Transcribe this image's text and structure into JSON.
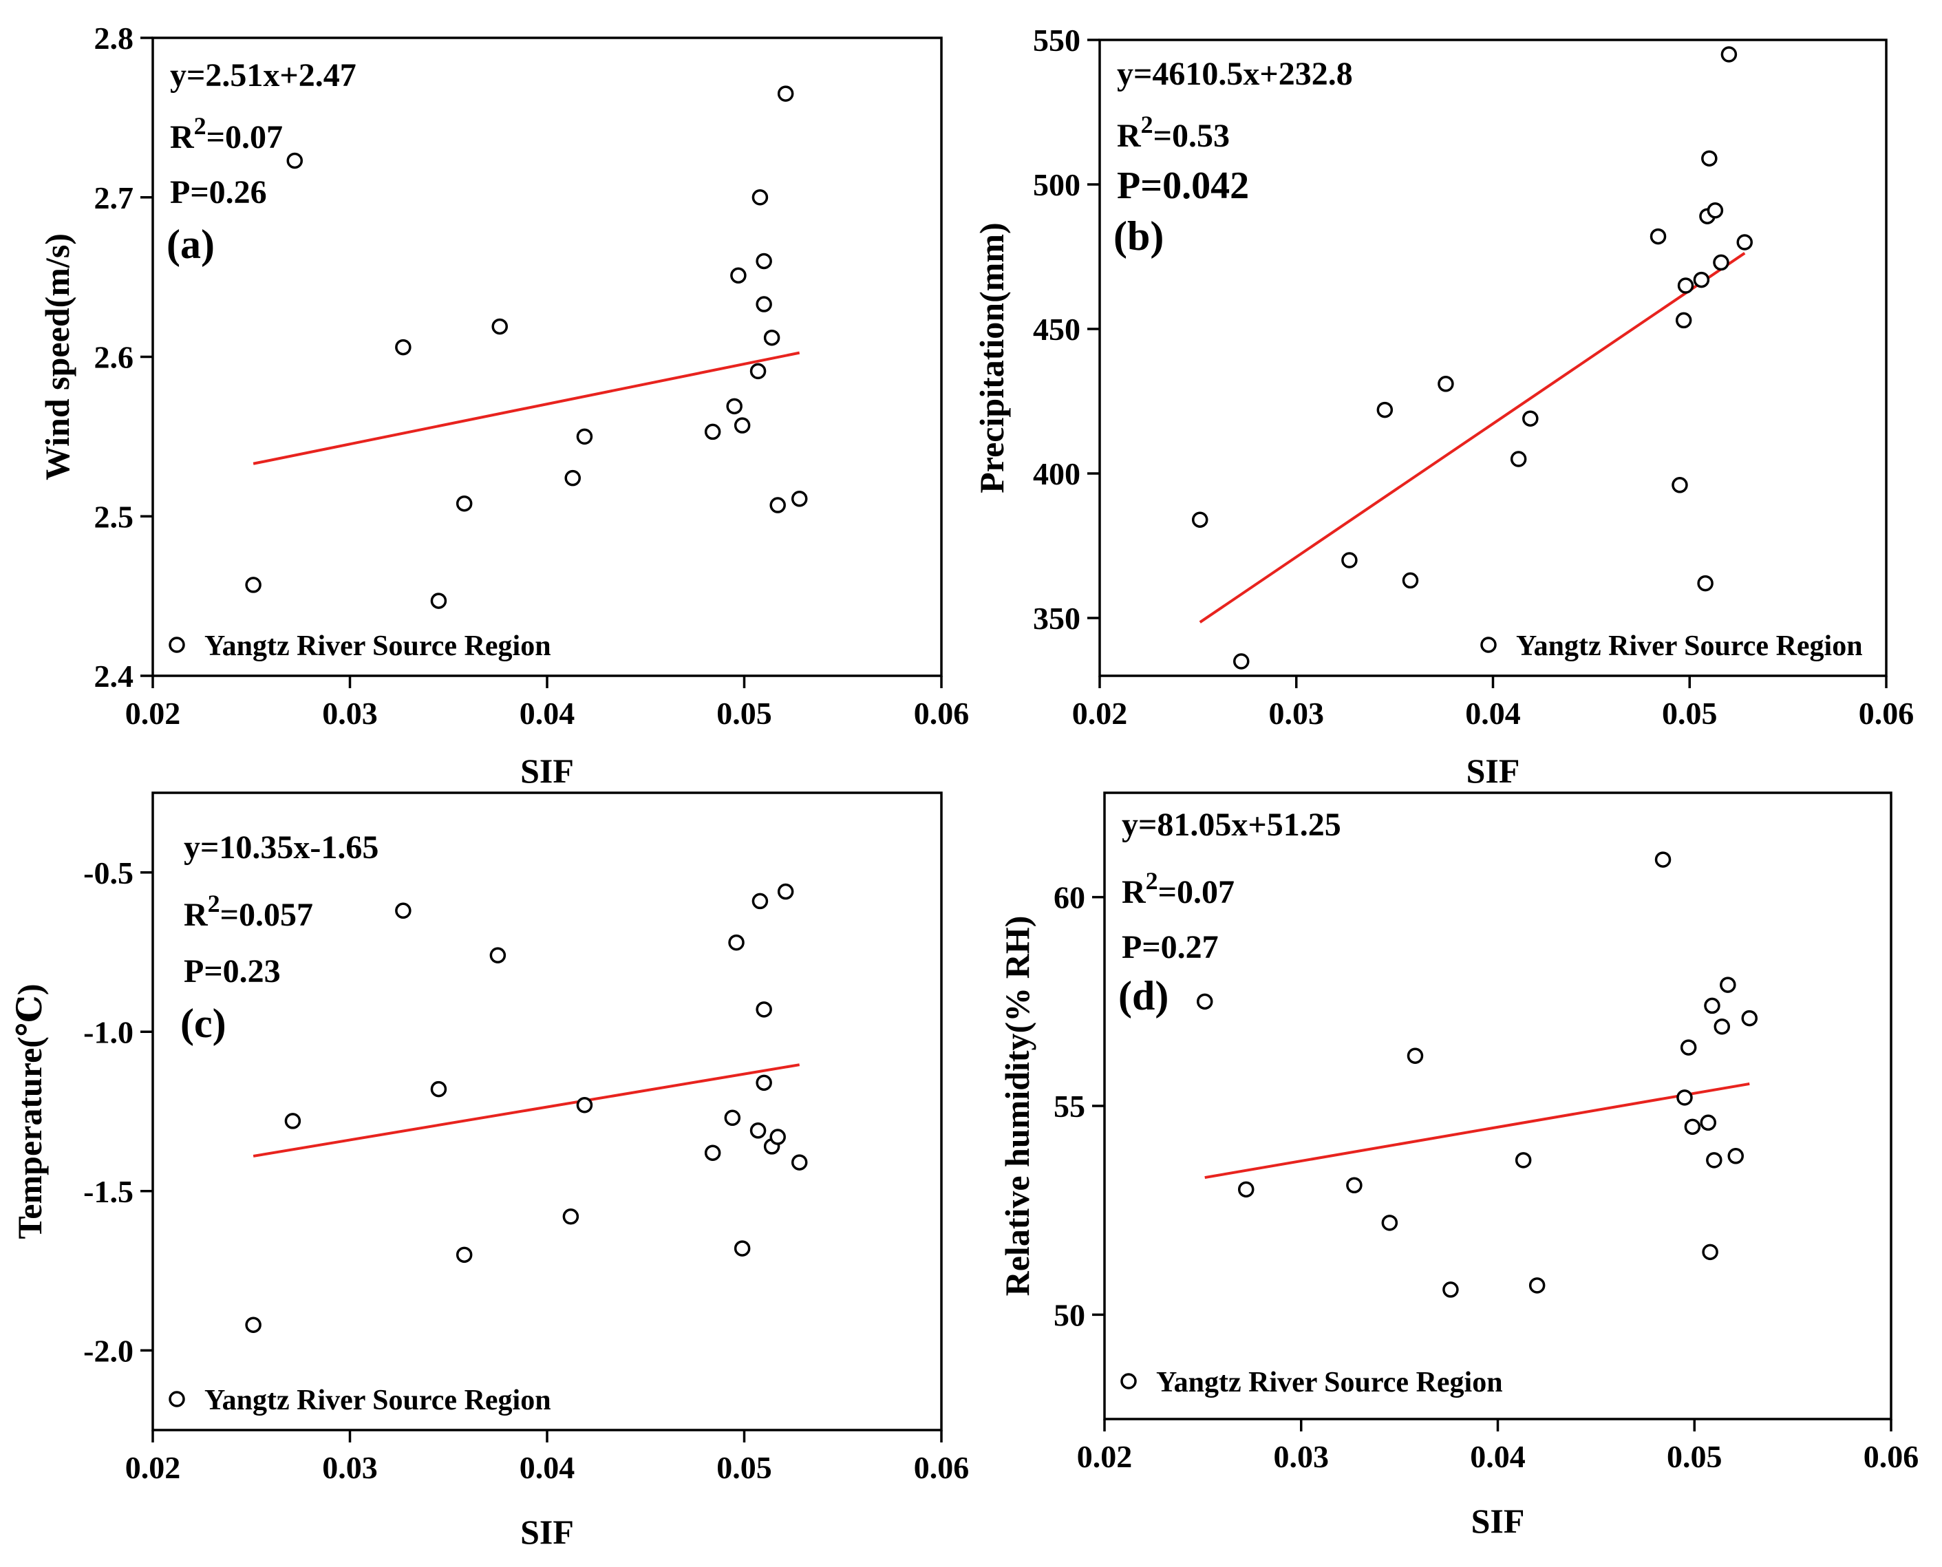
{
  "chart_data": [
    {
      "type": "scatter",
      "panel_label": "(a)",
      "xlabel": "SIF",
      "ylabel": "Wind speed(m/s)",
      "xlim": [
        0.02,
        0.06
      ],
      "ylim": [
        2.4,
        2.8
      ],
      "xticks": [
        "0.02",
        "0.03",
        "0.04",
        "0.05",
        "0.06"
      ],
      "yticks": [
        "2.4",
        "2.5",
        "2.6",
        "2.7",
        "2.8"
      ],
      "equation": "y=2.51x+2.47",
      "r2_label": "R",
      "r2_sup": "2",
      "r2_value": "=0.07",
      "p_label": "P=0.26",
      "legend": "Yangtz River Source Region",
      "legend_position": "bottom-left",
      "fit": {
        "slope": 2.51,
        "intercept": 2.47,
        "x_range": [
          0.0251,
          0.0528
        ]
      },
      "series": [
        {
          "name": "Yangtz River Source Region",
          "x": [
            0.0251,
            0.0272,
            0.0327,
            0.0345,
            0.0358,
            0.0376,
            0.0413,
            0.0419,
            0.0484,
            0.0495,
            0.0497,
            0.0499,
            0.0507,
            0.0508,
            0.051,
            0.051,
            0.0514,
            0.0517,
            0.0521,
            0.0528
          ],
          "y": [
            2.457,
            2.723,
            2.606,
            2.447,
            2.508,
            2.619,
            2.524,
            2.55,
            2.553,
            2.569,
            2.651,
            2.557,
            2.591,
            2.7,
            2.66,
            2.633,
            2.612,
            2.507,
            2.765,
            2.511
          ]
        }
      ]
    },
    {
      "type": "scatter",
      "panel_label": "(b)",
      "xlabel": "SIF",
      "ylabel": "Precipitation(mm)",
      "xlim": [
        0.02,
        0.06
      ],
      "ylim": [
        330,
        550
      ],
      "xticks": [
        "0.02",
        "0.03",
        "0.04",
        "0.05",
        "0.06"
      ],
      "yticks": [
        "350",
        "400",
        "450",
        "500",
        "550"
      ],
      "equation": "y=4610.5x+232.8",
      "r2_label": "R",
      "r2_sup": "2",
      "r2_value": "=0.53",
      "p_label": "P=0.042",
      "legend": "Yangtz River Source Region",
      "legend_position": "bottom-right",
      "fit": {
        "slope": 4610.5,
        "intercept": 232.8,
        "x_range": [
          0.0251,
          0.0528
        ]
      },
      "series": [
        {
          "name": "Yangtz River Source Region",
          "x": [
            0.0251,
            0.0272,
            0.0327,
            0.0345,
            0.0358,
            0.0376,
            0.0413,
            0.0419,
            0.0484,
            0.0495,
            0.0497,
            0.0498,
            0.0506,
            0.0508,
            0.0509,
            0.051,
            0.0513,
            0.0516,
            0.052,
            0.0528
          ],
          "y": [
            384,
            335,
            370,
            422,
            363,
            431,
            405,
            419,
            482,
            396,
            453,
            465,
            467,
            362,
            489,
            509,
            491,
            473,
            545,
            480
          ]
        }
      ]
    },
    {
      "type": "scatter",
      "panel_label": "(c)",
      "xlabel": "SIF",
      "ylabel": "Temperature(℃)",
      "xlim": [
        0.02,
        0.06
      ],
      "ylim": [
        -2.25,
        -0.25
      ],
      "xticks": [
        "0.02",
        "0.03",
        "0.04",
        "0.05",
        "0.06"
      ],
      "yticks": [
        "-0.5",
        "-1.0",
        "-1.5",
        "-2.0"
      ],
      "ytick_values": [
        -0.5,
        -1.0,
        -1.5,
        -2.0
      ],
      "equation": "y=10.35x-1.65",
      "r2_label": "R",
      "r2_sup": "2",
      "r2_value": "=0.057",
      "p_label": "P=0.23",
      "legend": "Yangtz River Source Region",
      "legend_position": "bottom-left",
      "fit": {
        "slope": 10.35,
        "intercept": -1.65,
        "x_range": [
          0.0251,
          0.0528
        ]
      },
      "series": [
        {
          "name": "Yangtz River Source Region",
          "x": [
            0.0251,
            0.0271,
            0.0327,
            0.0345,
            0.0358,
            0.0375,
            0.0412,
            0.0419,
            0.0484,
            0.0494,
            0.0496,
            0.0499,
            0.0507,
            0.0508,
            0.051,
            0.051,
            0.0514,
            0.0517,
            0.0521,
            0.0528
          ],
          "y": [
            -1.92,
            -1.28,
            -0.62,
            -1.18,
            -1.7,
            -0.76,
            -1.58,
            -1.23,
            -1.38,
            -1.27,
            -0.72,
            -1.68,
            -1.31,
            -0.59,
            -0.93,
            -1.16,
            -1.36,
            -1.33,
            -0.56,
            -1.41
          ]
        }
      ]
    },
    {
      "type": "scatter",
      "panel_label": "(d)",
      "xlabel": "SIF",
      "ylabel": "Relative humidity(% RH)",
      "xlim": [
        0.02,
        0.06
      ],
      "ylim": [
        47.5,
        62.5
      ],
      "xticks": [
        "0.02",
        "0.03",
        "0.04",
        "0.05",
        "0.06"
      ],
      "yticks": [
        "50",
        "55",
        "60"
      ],
      "ytick_values": [
        50,
        55,
        60
      ],
      "equation": "y=81.05x+51.25",
      "r2_label": "R",
      "r2_sup": "2",
      "r2_value": "=0.07",
      "p_label": "P=0.27",
      "legend": "Yangtz River Source Region",
      "legend_position": "bottom-left",
      "fit": {
        "slope": 81.05,
        "intercept": 51.25,
        "x_range": [
          0.0251,
          0.0528
        ]
      },
      "series": [
        {
          "name": "Yangtz River Source Region",
          "x": [
            0.0251,
            0.0272,
            0.0327,
            0.0345,
            0.0358,
            0.0376,
            0.0413,
            0.042,
            0.0484,
            0.0495,
            0.0497,
            0.0499,
            0.0507,
            0.0508,
            0.0509,
            0.051,
            0.0514,
            0.0517,
            0.0521,
            0.0528
          ],
          "y": [
            57.5,
            53.0,
            53.1,
            52.2,
            56.2,
            50.6,
            53.7,
            50.7,
            60.9,
            55.2,
            56.4,
            54.5,
            54.6,
            51.5,
            57.4,
            53.7,
            56.9,
            57.9,
            53.8,
            57.1
          ]
        }
      ]
    }
  ]
}
